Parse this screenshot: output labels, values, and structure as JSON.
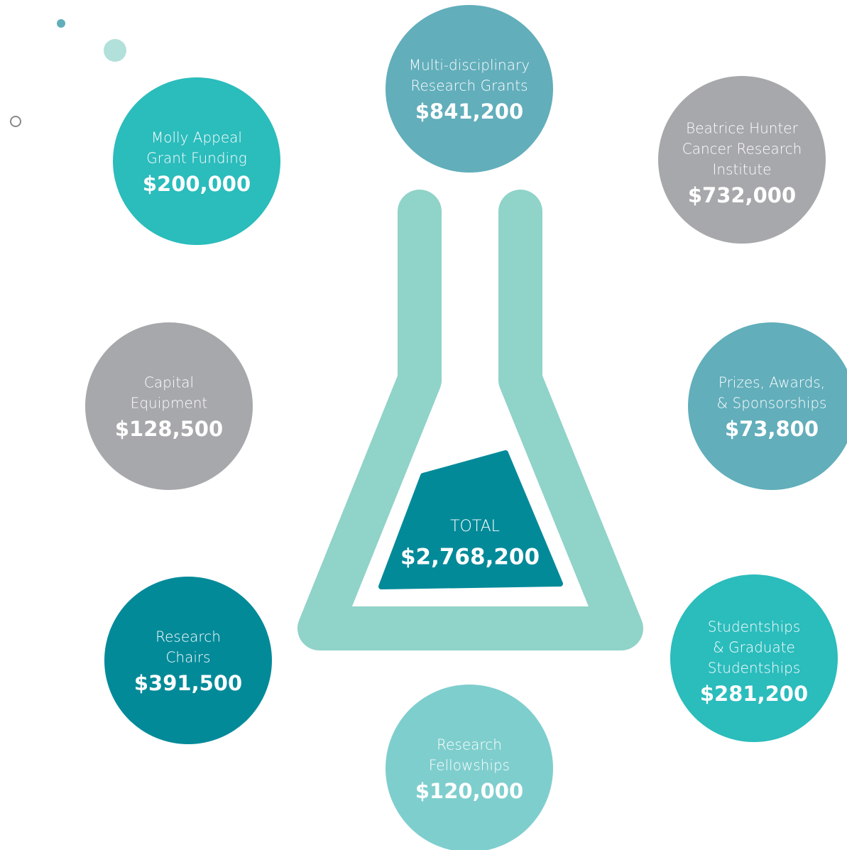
{
  "total": {
    "label": "TOTAL",
    "amount": "$2,768,200"
  },
  "nodes": [
    {
      "label_lines": [
        "Multi-disciplinary",
        "Research Grants"
      ],
      "amount": "$841,200"
    },
    {
      "label_lines": [
        "Molly Appeal",
        "Grant Funding"
      ],
      "amount": "$200,000"
    },
    {
      "label_lines": [
        "Beatrice Hunter",
        "Cancer Research",
        "Institute"
      ],
      "amount": "$732,000"
    },
    {
      "label_lines": [
        "Capital",
        "Equipment"
      ],
      "amount": "$128,500"
    },
    {
      "label_lines": [
        "Prizes, Awards,",
        "& Sponsorships"
      ],
      "amount": "$73,800"
    },
    {
      "label_lines": [
        "Research",
        "Chairs"
      ],
      "amount": "$391,500"
    },
    {
      "label_lines": [
        "Studentships",
        "& Graduate",
        "Studentships"
      ],
      "amount": "$281,200"
    },
    {
      "label_lines": [
        "Research",
        "Fellowships"
      ],
      "amount": "$120,000"
    }
  ]
}
